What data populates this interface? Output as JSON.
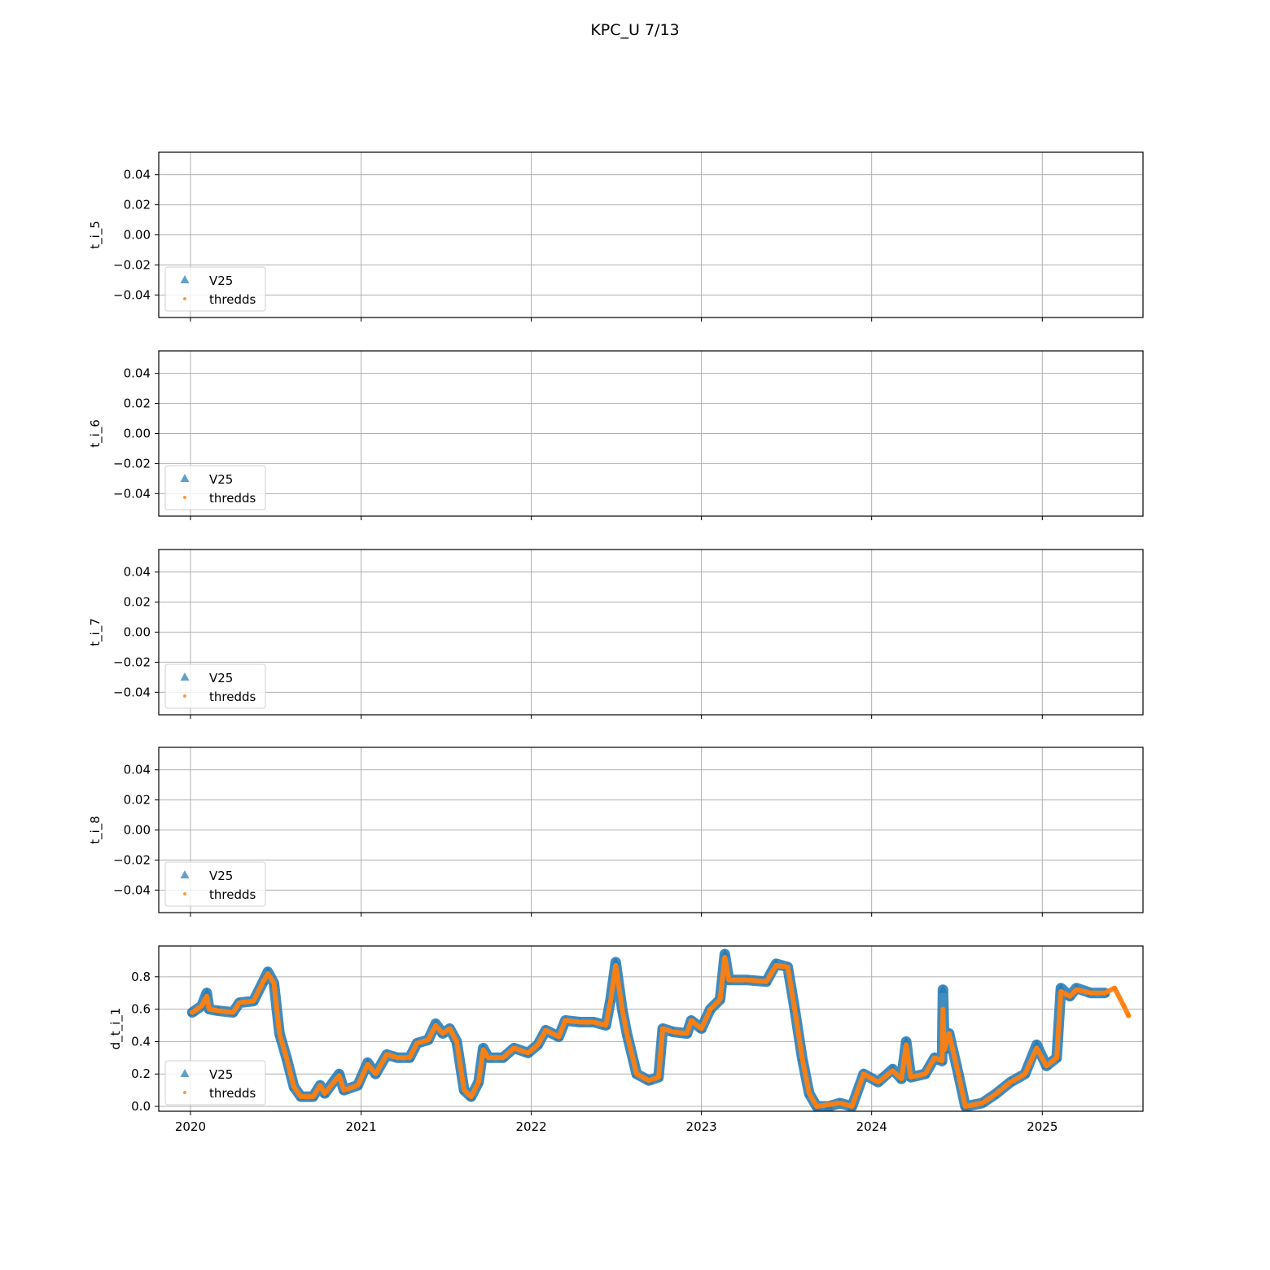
{
  "figure": {
    "title": "KPC_U 7/13"
  },
  "chart_data": [
    {
      "type": "scatter",
      "ylabel": "t_i_5",
      "x_ticks": [
        "2020",
        "2021",
        "2022",
        "2023",
        "2024",
        "2025"
      ],
      "x_tick_labels_shown": false,
      "y_ticks": [
        "0.04",
        "0.02",
        "0.00",
        "−0.02",
        "−0.04"
      ],
      "ylim": [
        -0.055,
        0.055
      ],
      "grid": true,
      "legend": {
        "placement": "lower-left",
        "entries": [
          "V25",
          "thredds"
        ]
      },
      "series": [
        {
          "name": "V25",
          "marker": "triangle",
          "color": "#1f77b4",
          "points": []
        },
        {
          "name": "thredds",
          "marker": "dot",
          "color": "#ff7f0e",
          "points": []
        }
      ]
    },
    {
      "type": "scatter",
      "ylabel": "t_i_6",
      "x_ticks": [
        "2020",
        "2021",
        "2022",
        "2023",
        "2024",
        "2025"
      ],
      "x_tick_labels_shown": false,
      "y_ticks": [
        "0.04",
        "0.02",
        "0.00",
        "−0.02",
        "−0.04"
      ],
      "ylim": [
        -0.055,
        0.055
      ],
      "grid": true,
      "legend": {
        "placement": "lower-left",
        "entries": [
          "V25",
          "thredds"
        ]
      },
      "series": [
        {
          "name": "V25",
          "marker": "triangle",
          "color": "#1f77b4",
          "points": []
        },
        {
          "name": "thredds",
          "marker": "dot",
          "color": "#ff7f0e",
          "points": []
        }
      ]
    },
    {
      "type": "scatter",
      "ylabel": "t_i_7",
      "x_ticks": [
        "2020",
        "2021",
        "2022",
        "2023",
        "2024",
        "2025"
      ],
      "x_tick_labels_shown": false,
      "y_ticks": [
        "0.04",
        "0.02",
        "0.00",
        "−0.02",
        "−0.04"
      ],
      "ylim": [
        -0.055,
        0.055
      ],
      "grid": true,
      "legend": {
        "placement": "lower-left",
        "entries": [
          "V25",
          "thredds"
        ]
      },
      "series": [
        {
          "name": "V25",
          "marker": "triangle",
          "color": "#1f77b4",
          "points": []
        },
        {
          "name": "thredds",
          "marker": "dot",
          "color": "#ff7f0e",
          "points": []
        }
      ]
    },
    {
      "type": "scatter",
      "ylabel": "t_i_8",
      "x_ticks": [
        "2020",
        "2021",
        "2022",
        "2023",
        "2024",
        "2025"
      ],
      "x_tick_labels_shown": false,
      "y_ticks": [
        "0.04",
        "0.02",
        "0.00",
        "−0.02",
        "−0.04"
      ],
      "ylim": [
        -0.055,
        0.055
      ],
      "grid": true,
      "legend": {
        "placement": "lower-left",
        "entries": [
          "V25",
          "thredds"
        ]
      },
      "series": [
        {
          "name": "V25",
          "marker": "triangle",
          "color": "#1f77b4",
          "points": []
        },
        {
          "name": "thredds",
          "marker": "dot",
          "color": "#ff7f0e",
          "points": []
        }
      ]
    },
    {
      "type": "scatter",
      "ylabel": "d_t_i_1",
      "x_ticks": [
        "2020",
        "2021",
        "2022",
        "2023",
        "2024",
        "2025"
      ],
      "x_tick_labels_shown": true,
      "y_ticks": [
        "0.8",
        "0.6",
        "0.4",
        "0.2",
        "0.0"
      ],
      "ylim": [
        -0.03,
        0.99
      ],
      "xlim": [
        "2019-10-25",
        "2025-08-05"
      ],
      "grid": true,
      "legend": {
        "placement": "lower-left",
        "entries": [
          "V25",
          "thredds"
        ]
      },
      "series": [
        {
          "name": "V25",
          "marker": "triangle",
          "color": "#1f77b4",
          "points": [
            [
              "2020-01-05",
              0.58
            ],
            [
              "2020-01-25",
              0.62
            ],
            [
              "2020-02-05",
              0.7
            ],
            [
              "2020-02-10",
              0.6
            ],
            [
              "2020-03-01",
              0.59
            ],
            [
              "2020-04-01",
              0.58
            ],
            [
              "2020-04-15",
              0.64
            ],
            [
              "2020-05-15",
              0.65
            ],
            [
              "2020-06-05",
              0.77
            ],
            [
              "2020-06-15",
              0.83
            ],
            [
              "2020-06-28",
              0.76
            ],
            [
              "2020-07-10",
              0.45
            ],
            [
              "2020-07-25",
              0.3
            ],
            [
              "2020-08-10",
              0.12
            ],
            [
              "2020-08-25",
              0.06
            ],
            [
              "2020-09-20",
              0.06
            ],
            [
              "2020-10-05",
              0.13
            ],
            [
              "2020-10-15",
              0.08
            ],
            [
              "2020-11-15",
              0.2
            ],
            [
              "2020-11-25",
              0.1
            ],
            [
              "2020-12-25",
              0.13
            ],
            [
              "2021-01-15",
              0.27
            ],
            [
              "2021-02-01",
              0.2
            ],
            [
              "2021-02-25",
              0.32
            ],
            [
              "2021-03-20",
              0.3
            ],
            [
              "2021-04-15",
              0.3
            ],
            [
              "2021-05-01",
              0.39
            ],
            [
              "2021-05-25",
              0.41
            ],
            [
              "2021-06-10",
              0.51
            ],
            [
              "2021-06-25",
              0.45
            ],
            [
              "2021-07-10",
              0.48
            ],
            [
              "2021-07-25",
              0.4
            ],
            [
              "2021-08-10",
              0.1
            ],
            [
              "2021-08-25",
              0.06
            ],
            [
              "2021-09-10",
              0.15
            ],
            [
              "2021-09-20",
              0.36
            ],
            [
              "2021-10-01",
              0.3
            ],
            [
              "2021-11-01",
              0.3
            ],
            [
              "2021-11-25",
              0.36
            ],
            [
              "2021-12-25",
              0.33
            ],
            [
              "2022-01-15",
              0.38
            ],
            [
              "2022-02-01",
              0.47
            ],
            [
              "2022-03-01",
              0.43
            ],
            [
              "2022-03-15",
              0.53
            ],
            [
              "2022-04-15",
              0.52
            ],
            [
              "2022-05-15",
              0.52
            ],
            [
              "2022-06-10",
              0.5
            ],
            [
              "2022-06-20",
              0.66
            ],
            [
              "2022-07-01",
              0.89
            ],
            [
              "2022-07-15",
              0.6
            ],
            [
              "2022-07-25",
              0.45
            ],
            [
              "2022-08-15",
              0.2
            ],
            [
              "2022-09-10",
              0.16
            ],
            [
              "2022-10-01",
              0.18
            ],
            [
              "2022-10-10",
              0.48
            ],
            [
              "2022-11-01",
              0.46
            ],
            [
              "2022-12-01",
              0.45
            ],
            [
              "2022-12-10",
              0.53
            ],
            [
              "2023-01-01",
              0.48
            ],
            [
              "2023-01-20",
              0.6
            ],
            [
              "2023-02-10",
              0.66
            ],
            [
              "2023-02-20",
              0.94
            ],
            [
              "2023-03-01",
              0.78
            ],
            [
              "2023-04-10",
              0.78
            ],
            [
              "2023-05-20",
              0.77
            ],
            [
              "2023-06-10",
              0.88
            ],
            [
              "2023-07-05",
              0.86
            ],
            [
              "2023-07-20",
              0.6
            ],
            [
              "2023-08-05",
              0.3
            ],
            [
              "2023-08-20",
              0.08
            ],
            [
              "2023-09-05",
              0.0
            ],
            [
              "2023-10-01",
              0.0
            ],
            [
              "2023-10-25",
              0.02
            ],
            [
              "2023-11-20",
              0.0
            ],
            [
              "2023-12-15",
              0.2
            ],
            [
              "2024-01-15",
              0.15
            ],
            [
              "2024-02-15",
              0.23
            ],
            [
              "2024-03-05",
              0.17
            ],
            [
              "2024-03-15",
              0.4
            ],
            [
              "2024-03-25",
              0.18
            ],
            [
              "2024-04-25",
              0.2
            ],
            [
              "2024-05-15",
              0.3
            ],
            [
              "2024-05-31",
              0.28
            ],
            [
              "2024-06-02",
              0.72
            ],
            [
              "2024-06-05",
              0.35
            ],
            [
              "2024-06-15",
              0.45
            ],
            [
              "2024-07-05",
              0.2
            ],
            [
              "2024-07-20",
              0.0
            ],
            [
              "2024-08-25",
              0.02
            ],
            [
              "2024-09-20",
              0.07
            ],
            [
              "2024-10-25",
              0.15
            ],
            [
              "2024-11-25",
              0.2
            ],
            [
              "2024-12-20",
              0.38
            ],
            [
              "2025-01-10",
              0.25
            ],
            [
              "2025-02-01",
              0.3
            ],
            [
              "2025-02-10",
              0.73
            ],
            [
              "2025-03-01",
              0.68
            ],
            [
              "2025-03-15",
              0.73
            ],
            [
              "2025-04-15",
              0.7
            ],
            [
              "2025-05-15",
              0.7
            ]
          ]
        },
        {
          "name": "thredds",
          "marker": "dot",
          "color": "#ff7f0e",
          "points": [
            [
              "2020-01-05",
              0.58
            ],
            [
              "2020-01-25",
              0.62
            ],
            [
              "2020-02-05",
              0.68
            ],
            [
              "2020-02-10",
              0.6
            ],
            [
              "2020-03-01",
              0.59
            ],
            [
              "2020-04-01",
              0.58
            ],
            [
              "2020-04-15",
              0.64
            ],
            [
              "2020-05-15",
              0.65
            ],
            [
              "2020-06-05",
              0.77
            ],
            [
              "2020-06-15",
              0.82
            ],
            [
              "2020-06-28",
              0.76
            ],
            [
              "2020-07-10",
              0.45
            ],
            [
              "2020-07-25",
              0.3
            ],
            [
              "2020-08-10",
              0.12
            ],
            [
              "2020-08-25",
              0.06
            ],
            [
              "2020-09-20",
              0.06
            ],
            [
              "2020-10-05",
              0.13
            ],
            [
              "2020-10-15",
              0.08
            ],
            [
              "2020-11-15",
              0.19
            ],
            [
              "2020-11-25",
              0.1
            ],
            [
              "2020-12-25",
              0.13
            ],
            [
              "2021-01-15",
              0.26
            ],
            [
              "2021-02-01",
              0.2
            ],
            [
              "2021-02-25",
              0.32
            ],
            [
              "2021-03-20",
              0.3
            ],
            [
              "2021-04-15",
              0.3
            ],
            [
              "2021-05-01",
              0.39
            ],
            [
              "2021-05-25",
              0.41
            ],
            [
              "2021-06-10",
              0.5
            ],
            [
              "2021-06-25",
              0.45
            ],
            [
              "2021-07-10",
              0.48
            ],
            [
              "2021-07-25",
              0.4
            ],
            [
              "2021-08-10",
              0.1
            ],
            [
              "2021-08-25",
              0.06
            ],
            [
              "2021-09-10",
              0.15
            ],
            [
              "2021-09-20",
              0.35
            ],
            [
              "2021-10-01",
              0.3
            ],
            [
              "2021-11-01",
              0.3
            ],
            [
              "2021-11-25",
              0.36
            ],
            [
              "2021-12-25",
              0.33
            ],
            [
              "2022-01-15",
              0.38
            ],
            [
              "2022-02-01",
              0.47
            ],
            [
              "2022-03-01",
              0.43
            ],
            [
              "2022-03-15",
              0.53
            ],
            [
              "2022-04-15",
              0.52
            ],
            [
              "2022-05-15",
              0.52
            ],
            [
              "2022-06-10",
              0.5
            ],
            [
              "2022-06-20",
              0.65
            ],
            [
              "2022-07-01",
              0.87
            ],
            [
              "2022-07-15",
              0.6
            ],
            [
              "2022-07-25",
              0.45
            ],
            [
              "2022-08-15",
              0.2
            ],
            [
              "2022-09-10",
              0.16
            ],
            [
              "2022-10-01",
              0.18
            ],
            [
              "2022-10-10",
              0.48
            ],
            [
              "2022-11-01",
              0.46
            ],
            [
              "2022-12-01",
              0.45
            ],
            [
              "2022-12-10",
              0.53
            ],
            [
              "2023-01-01",
              0.48
            ],
            [
              "2023-01-20",
              0.6
            ],
            [
              "2023-02-10",
              0.66
            ],
            [
              "2023-02-20",
              0.92
            ],
            [
              "2023-03-01",
              0.78
            ],
            [
              "2023-04-10",
              0.78
            ],
            [
              "2023-05-20",
              0.77
            ],
            [
              "2023-06-10",
              0.87
            ],
            [
              "2023-07-05",
              0.86
            ],
            [
              "2023-07-20",
              0.6
            ],
            [
              "2023-08-05",
              0.3
            ],
            [
              "2023-08-20",
              0.08
            ],
            [
              "2023-09-05",
              0.0
            ],
            [
              "2023-10-25",
              0.02
            ],
            [
              "2023-11-20",
              0.0
            ],
            [
              "2023-12-15",
              0.2
            ],
            [
              "2024-01-15",
              0.15
            ],
            [
              "2024-02-15",
              0.22
            ],
            [
              "2024-03-05",
              0.17
            ],
            [
              "2024-03-15",
              0.38
            ],
            [
              "2024-03-25",
              0.18
            ],
            [
              "2024-04-25",
              0.2
            ],
            [
              "2024-05-15",
              0.3
            ],
            [
              "2024-05-31",
              0.28
            ],
            [
              "2024-06-02",
              0.6
            ],
            [
              "2024-06-05",
              0.35
            ],
            [
              "2024-06-15",
              0.45
            ],
            [
              "2024-07-05",
              0.2
            ],
            [
              "2024-07-20",
              0.0
            ],
            [
              "2024-08-25",
              0.02
            ],
            [
              "2024-09-20",
              0.07
            ],
            [
              "2024-10-25",
              0.15
            ],
            [
              "2024-11-25",
              0.2
            ],
            [
              "2024-12-20",
              0.36
            ],
            [
              "2025-01-10",
              0.25
            ],
            [
              "2025-02-01",
              0.3
            ],
            [
              "2025-02-10",
              0.71
            ],
            [
              "2025-03-01",
              0.68
            ],
            [
              "2025-03-15",
              0.72
            ],
            [
              "2025-04-15",
              0.7
            ],
            [
              "2025-05-15",
              0.7
            ],
            [
              "2025-06-05",
              0.73
            ],
            [
              "2025-06-25",
              0.62
            ],
            [
              "2025-07-05",
              0.56
            ]
          ]
        }
      ]
    }
  ]
}
